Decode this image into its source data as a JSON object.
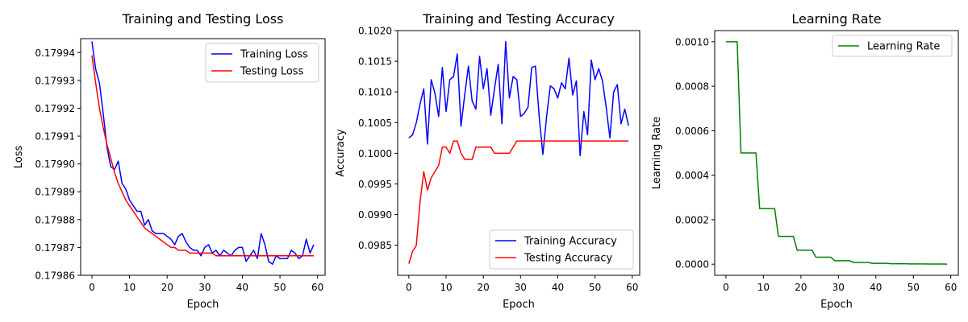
{
  "chart_data": [
    {
      "type": "line",
      "title": "Training and Testing Loss",
      "xlabel": "Epoch",
      "ylabel": "Loss",
      "xlim": [
        -3,
        62
      ],
      "ylim": [
        0.17986,
        0.179945
      ],
      "xticks": [
        0,
        10,
        20,
        30,
        40,
        50,
        60
      ],
      "yticks": [
        0.17986,
        0.17987,
        0.17988,
        0.17989,
        0.1799,
        0.17991,
        0.17992,
        0.17993,
        0.17994
      ],
      "ytick_decimals": 5,
      "legend_position": "upper-right",
      "series": [
        {
          "name": "Training Loss",
          "color": "#0000ff",
          "values": [
            0.179944,
            0.179934,
            0.179929,
            0.179918,
            0.179906,
            0.179899,
            0.179898,
            0.179901,
            0.179893,
            0.179891,
            0.179887,
            0.179885,
            0.179883,
            0.179883,
            0.179878,
            0.17988,
            0.179876,
            0.179875,
            0.179875,
            0.179875,
            0.179874,
            0.179873,
            0.179871,
            0.179874,
            0.179875,
            0.179872,
            0.17987,
            0.179869,
            0.179869,
            0.179867,
            0.17987,
            0.179871,
            0.179868,
            0.179869,
            0.179867,
            0.179869,
            0.179868,
            0.179867,
            0.179869,
            0.17987,
            0.17987,
            0.179865,
            0.179867,
            0.179869,
            0.179866,
            0.179875,
            0.179871,
            0.179865,
            0.179864,
            0.179867,
            0.179866,
            0.179866,
            0.179866,
            0.179869,
            0.179868,
            0.179866,
            0.179867,
            0.179873,
            0.179868,
            0.179871
          ]
        },
        {
          "name": "Testing Loss",
          "color": "#ff0000",
          "values": [
            0.179939,
            0.179929,
            0.17992,
            0.179913,
            0.179907,
            0.179902,
            0.179897,
            0.179893,
            0.17989,
            0.179887,
            0.179885,
            0.179883,
            0.179881,
            0.179879,
            0.179877,
            0.179876,
            0.179875,
            0.179874,
            0.179873,
            0.179872,
            0.179871,
            0.17987,
            0.17987,
            0.179869,
            0.179869,
            0.179869,
            0.179868,
            0.179868,
            0.179868,
            0.179868,
            0.179868,
            0.179868,
            0.179868,
            0.179867,
            0.179867,
            0.179867,
            0.179867,
            0.179867,
            0.179867,
            0.179867,
            0.179867,
            0.179867,
            0.179867,
            0.179867,
            0.179867,
            0.179867,
            0.179867,
            0.179867,
            0.179867,
            0.179867,
            0.179867,
            0.179867,
            0.179867,
            0.179867,
            0.179867,
            0.179867,
            0.179867,
            0.179867,
            0.179867,
            0.179867
          ]
        }
      ]
    },
    {
      "type": "line",
      "title": "Training and Testing Accuracy",
      "xlabel": "Epoch",
      "ylabel": "Accuracy",
      "xlim": [
        -3,
        62
      ],
      "ylim": [
        0.09801,
        0.102
      ],
      "xticks": [
        0,
        10,
        20,
        30,
        40,
        50,
        60
      ],
      "yticks": [
        0.0985,
        0.099,
        0.0995,
        0.1,
        0.1005,
        0.101,
        0.1015,
        0.102
      ],
      "ytick_decimals": 4,
      "legend_position": "lower-right",
      "series": [
        {
          "name": "Training Accuracy",
          "color": "#0000ff",
          "values": [
            0.10025,
            0.1003,
            0.1005,
            0.1008,
            0.10105,
            0.10015,
            0.1012,
            0.10098,
            0.1006,
            0.1014,
            0.10068,
            0.1012,
            0.10125,
            0.10162,
            0.10044,
            0.10095,
            0.10142,
            0.10085,
            0.10072,
            0.10158,
            0.10105,
            0.10138,
            0.10062,
            0.10105,
            0.10145,
            0.10048,
            0.10182,
            0.1009,
            0.10125,
            0.1012,
            0.1006,
            0.10065,
            0.10075,
            0.1014,
            0.10142,
            0.1006,
            0.09998,
            0.1006,
            0.1011,
            0.10105,
            0.1009,
            0.10115,
            0.10105,
            0.10155,
            0.10095,
            0.10118,
            0.09996,
            0.10068,
            0.1003,
            0.10152,
            0.1012,
            0.10138,
            0.10118,
            0.10075,
            0.10025,
            0.101,
            0.10112,
            0.10048,
            0.10072,
            0.10045
          ]
        },
        {
          "name": "Testing Accuracy",
          "color": "#ff0000",
          "values": [
            0.0982,
            0.0984,
            0.0985,
            0.0992,
            0.0997,
            0.0994,
            0.0996,
            0.0997,
            0.0998,
            0.1001,
            0.1001,
            0.1,
            0.1002,
            0.1002,
            0.1,
            0.0999,
            0.0999,
            0.0999,
            0.1001,
            0.1001,
            0.1001,
            0.1001,
            0.1001,
            0.1,
            0.1,
            0.1,
            0.1,
            0.1,
            0.1001,
            0.1002,
            0.1002,
            0.1002,
            0.1002,
            0.1002,
            0.1002,
            0.1002,
            0.1002,
            0.1002,
            0.1002,
            0.1002,
            0.1002,
            0.1002,
            0.1002,
            0.1002,
            0.1002,
            0.1002,
            0.1002,
            0.1002,
            0.1002,
            0.1002,
            0.1002,
            0.1002,
            0.1002,
            0.1002,
            0.1002,
            0.1002,
            0.1002,
            0.1002,
            0.1002,
            0.1002
          ]
        }
      ]
    },
    {
      "type": "line",
      "title": "Learning Rate",
      "xlabel": "Epoch",
      "ylabel": "Learning Rate",
      "xlim": [
        -3,
        62
      ],
      "ylim": [
        -5e-05,
        0.00105
      ],
      "xticks": [
        0,
        10,
        20,
        30,
        40,
        50,
        60
      ],
      "yticks": [
        0,
        0.0002,
        0.0004,
        0.0006,
        0.0008,
        0.001
      ],
      "ytick_decimals": 4,
      "legend_position": "upper-right",
      "series": [
        {
          "name": "Learning Rate",
          "color": "#008000",
          "values": [
            0.001,
            0.001,
            0.001,
            0.001,
            0.0005,
            0.0005,
            0.0005,
            0.0005,
            0.0005,
            0.00025,
            0.00025,
            0.00025,
            0.00025,
            0.00025,
            0.000125,
            0.000125,
            0.000125,
            0.000125,
            0.000125,
            6.25e-05,
            6.25e-05,
            6.25e-05,
            6.25e-05,
            6.25e-05,
            3.125e-05,
            3.125e-05,
            3.125e-05,
            3.125e-05,
            3.125e-05,
            1.5625e-05,
            1.5625e-05,
            1.5625e-05,
            1.5625e-05,
            1.5625e-05,
            7.8125e-06,
            7.8125e-06,
            7.8125e-06,
            7.8125e-06,
            7.8125e-06,
            3.90625e-06,
            3.90625e-06,
            3.90625e-06,
            3.90625e-06,
            3.90625e-06,
            1.953e-06,
            1.953e-06,
            1.953e-06,
            1.953e-06,
            1.953e-06,
            9.77e-07,
            9.77e-07,
            9.77e-07,
            9.77e-07,
            9.77e-07,
            4.88e-07,
            4.88e-07,
            4.88e-07,
            4.88e-07,
            4.88e-07,
            2.44e-07
          ]
        }
      ]
    }
  ]
}
